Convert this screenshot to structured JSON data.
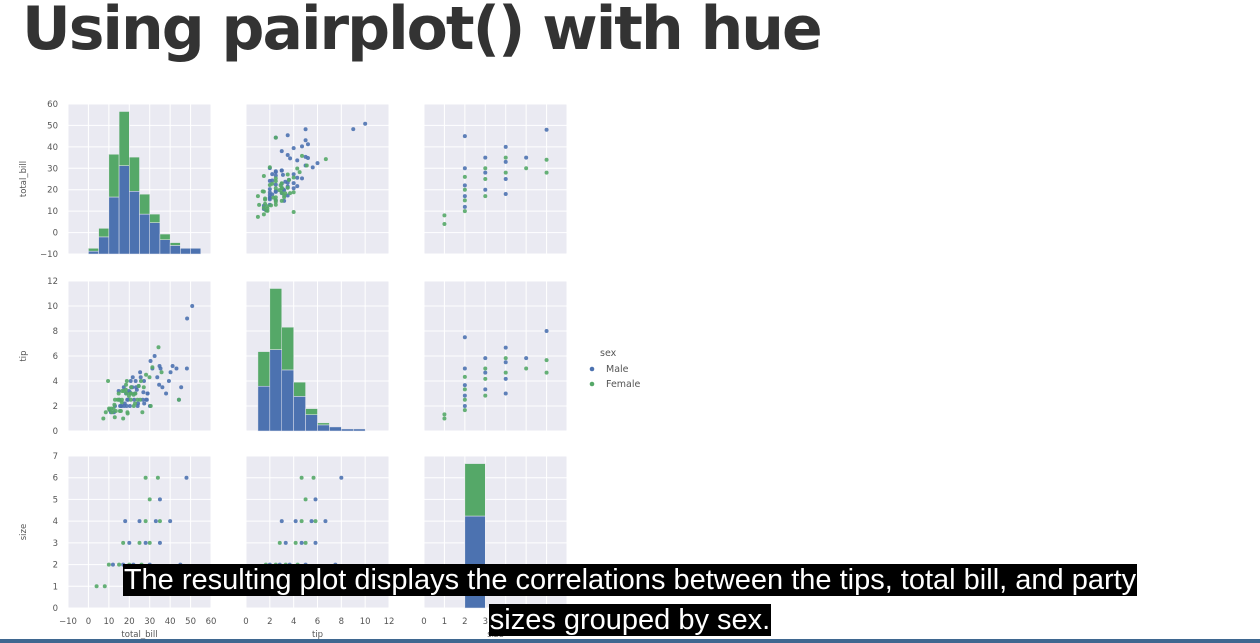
{
  "slide": {
    "title": "Using pairplot() with hue",
    "caption_line1": "The resulting plot displays the correlations between the tips, total bill, and party",
    "caption_line2": "sizes grouped by sex."
  },
  "colors": {
    "panel_background": "#eaeaf2",
    "grid": "#ffffff",
    "male": "#4c72b0",
    "female": "#55a868",
    "caption_background": "#000000",
    "caption_text": "#ffffff",
    "accent_bar": "#3f6790"
  },
  "chart_data": {
    "type": "scatter",
    "variables": [
      "total_bill",
      "tip",
      "size"
    ],
    "axis_labels": {
      "total_bill": "total_bill",
      "tip": "tip",
      "size": "size"
    },
    "ranges": {
      "total_bill": [
        -10,
        60
      ],
      "tip": [
        0,
        12
      ],
      "size": [
        0,
        7
      ]
    },
    "ticks": {
      "total_bill": [
        -10,
        0,
        10,
        20,
        30,
        40,
        50,
        60
      ],
      "tip": [
        0,
        2,
        4,
        6,
        8,
        10,
        12
      ],
      "size": [
        0,
        1,
        2,
        3,
        4,
        5,
        6,
        7
      ]
    },
    "grid": true,
    "legend": {
      "title": "sex",
      "position": "right",
      "entries": [
        {
          "label": "Male",
          "color": "#4c72b0"
        },
        {
          "label": "Female",
          "color": "#55a868"
        }
      ]
    },
    "series": [
      {
        "name": "Male",
        "color": "#4c72b0",
        "points": [
          [
            24.6,
            3.6
          ],
          [
            21.0,
            3.5
          ],
          [
            23.7,
            3.3
          ],
          [
            25.3,
            4.7
          ],
          [
            26.9,
            3.1
          ],
          [
            35.3,
            5.0
          ],
          [
            18.4,
            3.0
          ],
          [
            24.1,
            2.0
          ],
          [
            21.7,
            4.3
          ],
          [
            17.8,
            2.2
          ],
          [
            29.0,
            3.0
          ],
          [
            14.8,
            3.2
          ],
          [
            48.3,
            9.0
          ],
          [
            50.8,
            10.0
          ],
          [
            32.4,
            6.0
          ],
          [
            34.8,
            5.2
          ],
          [
            38.0,
            3.0
          ],
          [
            20.3,
            2.0
          ],
          [
            27.2,
            4.0
          ],
          [
            16.0,
            2.0
          ],
          [
            40.2,
            4.7
          ],
          [
            22.4,
            2.5
          ],
          [
            28.2,
            2.5
          ],
          [
            19.8,
            3.2
          ],
          [
            30.4,
            5.6
          ],
          [
            39.4,
            4.0
          ],
          [
            45.4,
            3.5
          ],
          [
            13.0,
            2.0
          ],
          [
            34.6,
            3.7
          ],
          [
            31.3,
            5.0
          ],
          [
            15.5,
            2.0
          ],
          [
            20.7,
            4.0
          ],
          [
            23.1,
            4.0
          ],
          [
            28.6,
            2.5
          ],
          [
            44.3,
            2.5
          ],
          [
            43.1,
            5.0
          ],
          [
            16.3,
            2.0
          ],
          [
            12.5,
            1.5
          ],
          [
            11.0,
            1.5
          ],
          [
            17.5,
            2.0
          ],
          [
            25.6,
            4.3
          ],
          [
            18.7,
            2.0
          ],
          [
            33.7,
            4.3
          ],
          [
            20.3,
            3.1
          ],
          [
            41.2,
            5.2
          ],
          [
            26.6,
            2.5
          ],
          [
            19.0,
            2.5
          ],
          [
            22.7,
            3.0
          ],
          [
            15.1,
            2.5
          ],
          [
            28.9,
            3.0
          ],
          [
            24.3,
            2.2
          ],
          [
            36.2,
            3.5
          ],
          [
            48.2,
            5.0
          ],
          [
            10.3,
            1.7
          ],
          [
            21.5,
            3.5
          ],
          [
            30.1,
            2.0
          ],
          [
            19.4,
            2.5
          ],
          [
            17.3,
            3.5
          ],
          [
            27.3,
            2.2
          ],
          [
            23.3,
            3.5
          ]
        ]
      },
      {
        "name": "Female",
        "color": "#55a868",
        "points": [
          [
            17.0,
            1.0
          ],
          [
            24.6,
            3.6
          ],
          [
            14.8,
            3.0
          ],
          [
            10.3,
            1.7
          ],
          [
            15.4,
            1.6
          ],
          [
            11.2,
            1.8
          ],
          [
            18.3,
            3.3
          ],
          [
            22.2,
            2.0
          ],
          [
            29.9,
            4.3
          ],
          [
            13.4,
            1.6
          ],
          [
            16.3,
            2.3
          ],
          [
            20.7,
            2.5
          ],
          [
            18.6,
            3.0
          ],
          [
            19.8,
            2.8
          ],
          [
            25.7,
            4.0
          ],
          [
            8.5,
            1.5
          ],
          [
            10.1,
            1.8
          ],
          [
            30.5,
            2.0
          ],
          [
            26.4,
            1.5
          ],
          [
            20.5,
            3.0
          ],
          [
            15.0,
            2.5
          ],
          [
            12.7,
            2.1
          ],
          [
            16.4,
            2.5
          ],
          [
            19.1,
            1.5
          ],
          [
            23.0,
            3.0
          ],
          [
            35.8,
            4.7
          ],
          [
            44.3,
            2.5
          ],
          [
            18.8,
            4.0
          ],
          [
            14.3,
            2.5
          ],
          [
            22.8,
            2.2
          ],
          [
            11.6,
            1.5
          ],
          [
            17.3,
            3.2
          ],
          [
            21.0,
            3.0
          ],
          [
            27.1,
            3.5
          ],
          [
            13.0,
            2.5
          ],
          [
            24.0,
            2.5
          ],
          [
            31.3,
            5.1
          ],
          [
            12.3,
            1.8
          ],
          [
            15.9,
            1.6
          ],
          [
            28.2,
            4.5
          ],
          [
            9.6,
            4.0
          ],
          [
            34.3,
            6.7
          ],
          [
            16.5,
            3.2
          ],
          [
            20.9,
            3.5
          ],
          [
            25.3,
            2.5
          ],
          [
            19.2,
            1.4
          ],
          [
            12.9,
            1.1
          ],
          [
            22.1,
            2.9
          ],
          [
            7.3,
            1.0
          ],
          [
            18.4,
            3.7
          ]
        ]
      }
    ],
    "size_points": {
      "Male": [
        [
          2,
          17
        ],
        [
          2,
          30
        ],
        [
          3,
          35
        ],
        [
          4,
          25
        ],
        [
          4,
          40
        ],
        [
          2,
          12
        ],
        [
          3,
          28
        ],
        [
          4,
          33
        ],
        [
          6,
          48
        ],
        [
          5,
          35
        ],
        [
          2,
          22
        ],
        [
          3,
          20
        ],
        [
          2,
          45
        ],
        [
          4,
          18
        ]
      ],
      "Female": [
        [
          2,
          10
        ],
        [
          2,
          20
        ],
        [
          3,
          30
        ],
        [
          4,
          28
        ],
        [
          6,
          28
        ],
        [
          5,
          30
        ],
        [
          1,
          8
        ],
        [
          2,
          15
        ],
        [
          3,
          25
        ],
        [
          4,
          35
        ],
        [
          6,
          34
        ],
        [
          2,
          26
        ],
        [
          3,
          17
        ],
        [
          1,
          4
        ]
      ]
    },
    "histograms": {
      "total_bill": {
        "bins": [
          [
            0,
            5
          ],
          [
            5,
            10
          ],
          [
            10,
            15
          ],
          [
            15,
            20
          ],
          [
            20,
            25
          ],
          [
            25,
            30
          ],
          [
            30,
            35
          ],
          [
            35,
            40
          ],
          [
            40,
            45
          ],
          [
            45,
            50
          ],
          [
            50,
            55
          ]
        ],
        "Male": [
          1,
          6,
          20,
          31,
          22,
          14,
          11,
          5,
          3,
          2,
          2
        ],
        "Female": [
          1,
          3,
          15,
          19,
          12,
          7,
          3,
          2,
          1,
          0,
          0
        ]
      },
      "tip": {
        "bins": [
          [
            1,
            2
          ],
          [
            2,
            3
          ],
          [
            3,
            4
          ],
          [
            4,
            5
          ],
          [
            5,
            6
          ],
          [
            6,
            7
          ],
          [
            7,
            8
          ],
          [
            8,
            9
          ],
          [
            9,
            10
          ]
        ],
        "Male": [
          22,
          40,
          30,
          17,
          8,
          3,
          2,
          1,
          1
        ],
        "Female": [
          17,
          30,
          21,
          7,
          3,
          1,
          0,
          0,
          0
        ]
      },
      "size": {
        "bins": [
          [
            1,
            2
          ],
          [
            2,
            3
          ],
          [
            3,
            4
          ],
          [
            4,
            5
          ],
          [
            5,
            6
          ],
          [
            6,
            7
          ]
        ],
        "Male": [
          0,
          100,
          0,
          0,
          0,
          0
        ],
        "Female": [
          0,
          57,
          0,
          0,
          0,
          0
        ]
      }
    }
  }
}
